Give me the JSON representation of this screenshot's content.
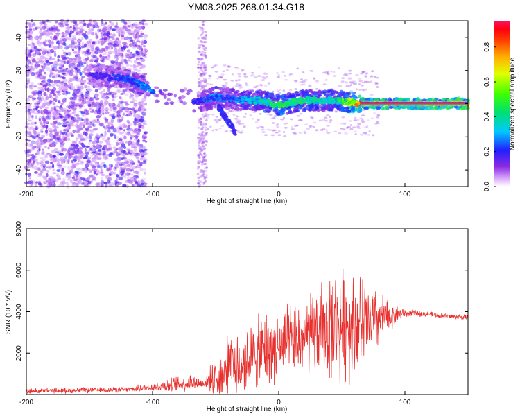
{
  "title": "YM08.2025.268.01.34.G18",
  "chart_data": [
    {
      "type": "heatmap",
      "xlabel": "Height of straight line (km)",
      "ylabel": "Frequency (Hz)",
      "xlim": [
        -200,
        150
      ],
      "ylim": [
        -50,
        50
      ],
      "xticks": [
        "-200",
        "-100",
        "0",
        "100"
      ],
      "yticks": [
        "-40",
        "-20",
        "0",
        "20",
        "40"
      ],
      "colorbar": {
        "label": "Normalized spectral amplitude",
        "range": [
          0.0,
          0.95
        ],
        "ticks": [
          "0.0",
          "0.2",
          "0.4",
          "0.6",
          "0.8"
        ]
      },
      "ridge": {
        "description_points_x": [
          -155,
          -120,
          -100,
          -80,
          -65,
          -50,
          -40,
          -30,
          -15,
          0,
          20,
          45,
          65,
          85,
          150
        ],
        "frequency_hz": [
          18,
          15,
          8,
          4,
          1,
          4,
          3,
          2,
          2,
          -1,
          2,
          2,
          0,
          0,
          0
        ],
        "amplitude": [
          0.15,
          0.25,
          0.3,
          0.25,
          0.2,
          0.3,
          0.25,
          0.3,
          0.4,
          0.5,
          0.45,
          0.4,
          0.85,
          0.9,
          0.9
        ]
      },
      "gap_x": [
        -107,
        -62
      ]
    },
    {
      "type": "line",
      "xlabel": "Height of straight line (km)",
      "ylabel": "SNR (10 * v/v)",
      "xlim": [
        -200,
        150
      ],
      "ylim": [
        0,
        8000
      ],
      "xticks": [
        "-200",
        "-100",
        "0",
        "100"
      ],
      "yticks": [
        "2000",
        "4000",
        "6000",
        "8000"
      ],
      "color": "#e8302e",
      "envelope": {
        "x": [
          -200,
          -120,
          -100,
          -80,
          -70,
          -60,
          -45,
          -40,
          -30,
          -20,
          -10,
          0,
          10,
          20,
          30,
          40,
          50,
          60,
          70,
          80,
          90,
          100,
          110,
          120,
          130,
          140,
          150
        ],
        "base": [
          150,
          220,
          350,
          450,
          550,
          500,
          900,
          1100,
          1400,
          1700,
          2000,
          2200,
          2400,
          2600,
          2800,
          3000,
          3100,
          3200,
          3300,
          3500,
          3750,
          3900,
          3900,
          3850,
          3800,
          3750,
          3700
        ],
        "amp": [
          150,
          150,
          250,
          450,
          500,
          300,
          1400,
          1800,
          2000,
          2000,
          2100,
          2000,
          2000,
          2200,
          2500,
          3000,
          3200,
          3000,
          2500,
          1600,
          700,
          250,
          180,
          160,
          150,
          150,
          150
        ]
      }
    }
  ]
}
